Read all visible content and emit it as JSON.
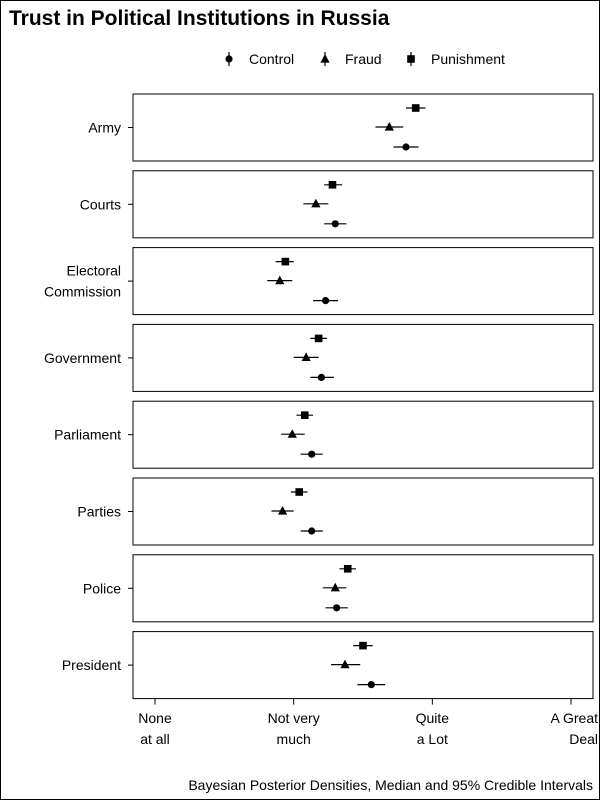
{
  "chart_data": {
    "type": "scatter",
    "title": "Trust in Political Institutions in Russia",
    "caption": "Bayesian Posterior Densities, Median and 95% Credible Intervals",
    "legend_position": "top",
    "legend": [
      {
        "name": "Control",
        "marker": "circle"
      },
      {
        "name": "Fraud",
        "marker": "triangle"
      },
      {
        "name": "Punishment",
        "marker": "square"
      }
    ],
    "xlim": [
      1,
      4
    ],
    "x_ticks": [
      {
        "value": 1,
        "label_lines": [
          "None",
          "at all"
        ]
      },
      {
        "value": 2,
        "label_lines": [
          "Not very",
          "much"
        ]
      },
      {
        "value": 3,
        "label_lines": [
          "Quite",
          "a Lot"
        ]
      },
      {
        "value": 4,
        "label_lines": [
          "A Great",
          "Deal"
        ]
      }
    ],
    "grid": false,
    "panels": [
      {
        "label_lines": [
          "Army"
        ],
        "points": {
          "Punishment": {
            "median": 2.88,
            "lower": 2.81,
            "upper": 2.95
          },
          "Fraud": {
            "median": 2.69,
            "lower": 2.59,
            "upper": 2.79
          },
          "Control": {
            "median": 2.81,
            "lower": 2.72,
            "upper": 2.9
          }
        }
      },
      {
        "label_lines": [
          "Courts"
        ],
        "points": {
          "Punishment": {
            "median": 2.28,
            "lower": 2.22,
            "upper": 2.35
          },
          "Fraud": {
            "median": 2.16,
            "lower": 2.07,
            "upper": 2.25
          },
          "Control": {
            "median": 2.3,
            "lower": 2.22,
            "upper": 2.38
          }
        }
      },
      {
        "label_lines": [
          "Electoral",
          "Commission"
        ],
        "points": {
          "Punishment": {
            "median": 1.94,
            "lower": 1.87,
            "upper": 2.0
          },
          "Fraud": {
            "median": 1.9,
            "lower": 1.81,
            "upper": 1.99
          },
          "Control": {
            "median": 2.23,
            "lower": 2.14,
            "upper": 2.32
          }
        }
      },
      {
        "label_lines": [
          "Government"
        ],
        "points": {
          "Punishment": {
            "median": 2.18,
            "lower": 2.12,
            "upper": 2.24
          },
          "Fraud": {
            "median": 2.09,
            "lower": 2.0,
            "upper": 2.18
          },
          "Control": {
            "median": 2.2,
            "lower": 2.12,
            "upper": 2.29
          }
        }
      },
      {
        "label_lines": [
          "Parliament"
        ],
        "points": {
          "Punishment": {
            "median": 2.08,
            "lower": 2.02,
            "upper": 2.14
          },
          "Fraud": {
            "median": 1.99,
            "lower": 1.91,
            "upper": 2.08
          },
          "Control": {
            "median": 2.13,
            "lower": 2.05,
            "upper": 2.21
          }
        }
      },
      {
        "label_lines": [
          "Parties"
        ],
        "points": {
          "Punishment": {
            "median": 2.04,
            "lower": 1.98,
            "upper": 2.1
          },
          "Fraud": {
            "median": 1.92,
            "lower": 1.84,
            "upper": 2.0
          },
          "Control": {
            "median": 2.13,
            "lower": 2.05,
            "upper": 2.21
          }
        }
      },
      {
        "label_lines": [
          "Police"
        ],
        "points": {
          "Punishment": {
            "median": 2.39,
            "lower": 2.33,
            "upper": 2.45
          },
          "Fraud": {
            "median": 2.3,
            "lower": 2.21,
            "upper": 2.38
          },
          "Control": {
            "median": 2.31,
            "lower": 2.23,
            "upper": 2.39
          }
        }
      },
      {
        "label_lines": [
          "President"
        ],
        "points": {
          "Punishment": {
            "median": 2.5,
            "lower": 2.43,
            "upper": 2.57
          },
          "Fraud": {
            "median": 2.37,
            "lower": 2.27,
            "upper": 2.48
          },
          "Control": {
            "median": 2.56,
            "lower": 2.46,
            "upper": 2.66
          }
        }
      }
    ]
  }
}
